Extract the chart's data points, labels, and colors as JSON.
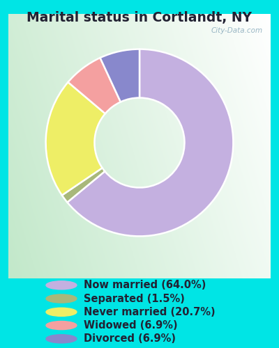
{
  "title": "Marital status in Cortlandt, NY",
  "slices": [
    {
      "label": "Now married (64.0%)",
      "value": 64.0,
      "color": "#C4B0E0"
    },
    {
      "label": "Separated (1.5%)",
      "value": 1.5,
      "color": "#A8B87A"
    },
    {
      "label": "Never married (20.7%)",
      "value": 20.7,
      "color": "#EEEE66"
    },
    {
      "label": "Widowed (6.9%)",
      "value": 6.9,
      "color": "#F4A0A0"
    },
    {
      "label": "Divorced (6.9%)",
      "value": 6.9,
      "color": "#8888CC"
    }
  ],
  "bg_outer": "#00E5E5",
  "title_color": "#222233",
  "title_fontsize": 13.5,
  "watermark": "City-Data.com",
  "legend_fontsize": 10.5,
  "donut_width": 0.52
}
